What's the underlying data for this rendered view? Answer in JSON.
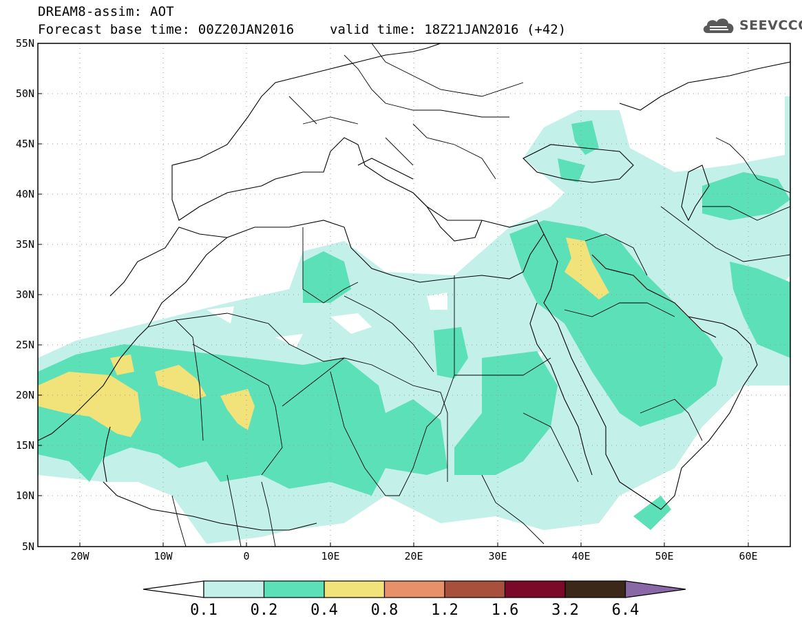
{
  "header": {
    "title": "DREAM8-assim: AOT",
    "base_time": "Forecast base time: 00Z20JAN2016",
    "valid_time": "valid time: 18Z21JAN2016 (+42)"
  },
  "logo": {
    "text": "SEEVCCC",
    "icon": "cloud-icon"
  },
  "map": {
    "projection": "cylindrical equidistant",
    "lon_range": [
      -25,
      65
    ],
    "lat_range": [
      5,
      55
    ],
    "lat_labels": [
      "5N",
      "10N",
      "15N",
      "20N",
      "25N",
      "30N",
      "35N",
      "40N",
      "45N",
      "50N",
      "55N"
    ],
    "lon_labels": [
      "20W",
      "10W",
      "0",
      "10E",
      "20E",
      "30E",
      "40E",
      "50E",
      "60E"
    ],
    "grid": "dotted"
  },
  "colorbar": {
    "labels": [
      "0.1",
      "0.2",
      "0.4",
      "0.8",
      "1.2",
      "1.6",
      "3.2",
      "6.4"
    ],
    "colors": [
      "#ffffff",
      "#c4f0ea",
      "#5ce0b8",
      "#f2e27a",
      "#e8906a",
      "#a8503c",
      "#7a0a28",
      "#3c2818",
      "#8a68a8"
    ]
  }
}
